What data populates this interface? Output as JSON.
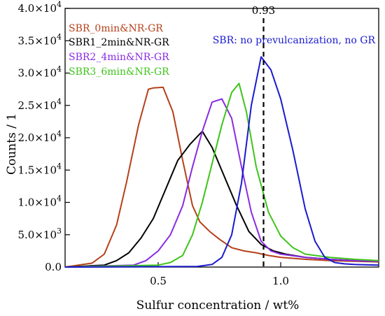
{
  "chart_data": {
    "type": "line",
    "xlabel": "Sulfur concentration / wt%",
    "ylabel": "Counts / 1",
    "xlim": [
      0.12,
      1.4
    ],
    "ylim": [
      0,
      40000
    ],
    "x_ticks": [
      0.5,
      1.0
    ],
    "x_tick_labels": [
      "0.5",
      "1.0"
    ],
    "y_ticks": [
      {
        "value": 0,
        "mantissa": "0.0",
        "exp": ""
      },
      {
        "value": 5000,
        "mantissa": "5.0×10",
        "exp": "3"
      },
      {
        "value": 10000,
        "mantissa": "1.0×10",
        "exp": "4"
      },
      {
        "value": 15000,
        "mantissa": "1.5×10",
        "exp": "4"
      },
      {
        "value": 20000,
        "mantissa": "2.0×10",
        "exp": "4"
      },
      {
        "value": 25000,
        "mantissa": "2.5×10",
        "exp": "4"
      },
      {
        "value": 30000,
        "mantissa": "3.0×10",
        "exp": "4"
      },
      {
        "value": 35000,
        "mantissa": "3.5×10",
        "exp": "4"
      },
      {
        "value": 40000,
        "mantissa": "4.0×10",
        "exp": "4"
      }
    ],
    "legend_position": "top-left",
    "grid": false,
    "series": [
      {
        "name": "SBR_0min&NR-GR",
        "color": "#b5401a",
        "x": [
          0.12,
          0.23,
          0.28,
          0.33,
          0.37,
          0.42,
          0.46,
          0.48,
          0.52,
          0.56,
          0.6,
          0.64,
          0.67,
          0.71,
          0.75,
          0.8,
          0.85,
          0.9,
          0.95,
          1.0,
          1.1,
          1.2,
          1.3,
          1.4
        ],
        "y": [
          0,
          600,
          2000,
          6500,
          13000,
          22000,
          27500,
          27700,
          27800,
          24000,
          16500,
          9500,
          7000,
          5500,
          4300,
          3000,
          2500,
          2200,
          1800,
          1500,
          1200,
          1000,
          900,
          800
        ]
      },
      {
        "name": "SBR1_2min&NR-GR",
        "color": "#000000",
        "x": [
          0.12,
          0.28,
          0.33,
          0.38,
          0.43,
          0.48,
          0.53,
          0.58,
          0.63,
          0.68,
          0.72,
          0.77,
          0.82,
          0.87,
          0.92,
          0.97,
          1.02,
          1.1,
          1.2,
          1.3,
          1.4
        ],
        "y": [
          0,
          300,
          1000,
          2200,
          4500,
          7500,
          12000,
          16500,
          19000,
          21000,
          18500,
          14000,
          9500,
          5500,
          3500,
          2500,
          2000,
          1500,
          1200,
          1000,
          900
        ]
      },
      {
        "name": "SBR2_4min&NR-GR",
        "color": "#8a2be2",
        "x": [
          0.12,
          0.4,
          0.45,
          0.5,
          0.55,
          0.6,
          0.64,
          0.68,
          0.72,
          0.76,
          0.8,
          0.84,
          0.88,
          0.92,
          0.96,
          1.0,
          1.1,
          1.2,
          1.3,
          1.4
        ],
        "y": [
          0,
          300,
          1000,
          2500,
          5000,
          9500,
          15500,
          21000,
          25500,
          26000,
          23000,
          15500,
          8500,
          4000,
          2500,
          2000,
          1500,
          1200,
          1000,
          900
        ]
      },
      {
        "name": "SBR3_6min&NR-GR",
        "color": "#3ec41a",
        "x": [
          0.12,
          0.5,
          0.55,
          0.6,
          0.64,
          0.68,
          0.72,
          0.76,
          0.8,
          0.83,
          0.86,
          0.9,
          0.95,
          1.0,
          1.05,
          1.1,
          1.2,
          1.3,
          1.4
        ],
        "y": [
          0,
          300,
          700,
          1800,
          5000,
          10000,
          16000,
          22000,
          27000,
          28400,
          24000,
          15500,
          8500,
          4800,
          3000,
          2000,
          1500,
          1200,
          1000
        ]
      },
      {
        "name": "SBR: no prevulcanization, no GR",
        "color": "#1a1acf",
        "x": [
          0.12,
          0.66,
          0.72,
          0.76,
          0.8,
          0.84,
          0.88,
          0.92,
          0.96,
          1.0,
          1.05,
          1.1,
          1.14,
          1.18,
          1.22,
          1.26,
          1.3,
          1.4
        ],
        "y": [
          0,
          100,
          400,
          1500,
          5000,
          13000,
          25000,
          32500,
          30500,
          26000,
          18000,
          9000,
          4000,
          1500,
          700,
          500,
          400,
          300
        ]
      }
    ],
    "annotations": [
      {
        "type": "vline",
        "x": 0.93,
        "label": "0.93",
        "style": "dashed",
        "color": "#000000"
      }
    ]
  }
}
